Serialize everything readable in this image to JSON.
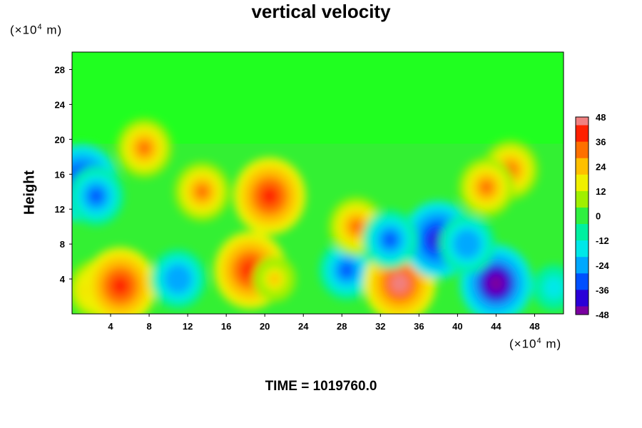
{
  "chart_data": {
    "type": "heatmap",
    "title": "vertical velocity",
    "ylabel": "Height",
    "y_unit_label": "(×10⁴ m)",
    "x_unit_label": "(×10⁴ m)",
    "time_label": "TIME = 1019760.0",
    "xlim": [
      0,
      51
    ],
    "ylim": [
      0,
      30
    ],
    "x_ticks": [
      "4",
      "8",
      "12",
      "16",
      "20",
      "24",
      "28",
      "32",
      "36",
      "40",
      "44",
      "48"
    ],
    "y_ticks": [
      "4",
      "8",
      "12",
      "16",
      "20",
      "24",
      "28"
    ],
    "colorbar": {
      "range": [
        -48,
        48
      ],
      "tick_labels": [
        "48",
        "36",
        "24",
        "12",
        "0",
        "-12",
        "-24",
        "-36",
        "-48"
      ],
      "colors": [
        "#7a00a0",
        "#2a00d8",
        "#0050ff",
        "#00a8ff",
        "#00e8e8",
        "#00f0a0",
        "#30f040",
        "#a0f000",
        "#f0f000",
        "#ffc000",
        "#ff7000",
        "#ff2000",
        "#f08080"
      ]
    },
    "features": [
      {
        "x": 2.5,
        "y": 2.8,
        "value": 32
      },
      {
        "x": 5,
        "y": 3.2,
        "value": 40
      },
      {
        "x": 11,
        "y": 4,
        "value": -28
      },
      {
        "x": 18.5,
        "y": 5,
        "value": 42
      },
      {
        "x": 21,
        "y": 4,
        "value": 20
      },
      {
        "x": 28.5,
        "y": 5,
        "value": -34
      },
      {
        "x": 34,
        "y": 3.5,
        "value": 44
      },
      {
        "x": 38,
        "y": 8.5,
        "value": -38
      },
      {
        "x": 44,
        "y": 3.5,
        "value": -46
      },
      {
        "x": 20.5,
        "y": 13.5,
        "value": 38
      },
      {
        "x": 13.5,
        "y": 14,
        "value": 30
      },
      {
        "x": 7.5,
        "y": 19,
        "value": 30
      },
      {
        "x": 1,
        "y": 15,
        "value": -38
      },
      {
        "x": 2.5,
        "y": 13.5,
        "value": -34
      },
      {
        "x": 45.5,
        "y": 16.5,
        "value": 32
      },
      {
        "x": 43,
        "y": 14.5,
        "value": 28
      },
      {
        "x": 29.5,
        "y": 10,
        "value": 28
      },
      {
        "x": 33,
        "y": 8.5,
        "value": -30
      },
      {
        "x": 41,
        "y": 8,
        "value": -28
      },
      {
        "x": 50,
        "y": 3,
        "value": -18
      }
    ]
  }
}
